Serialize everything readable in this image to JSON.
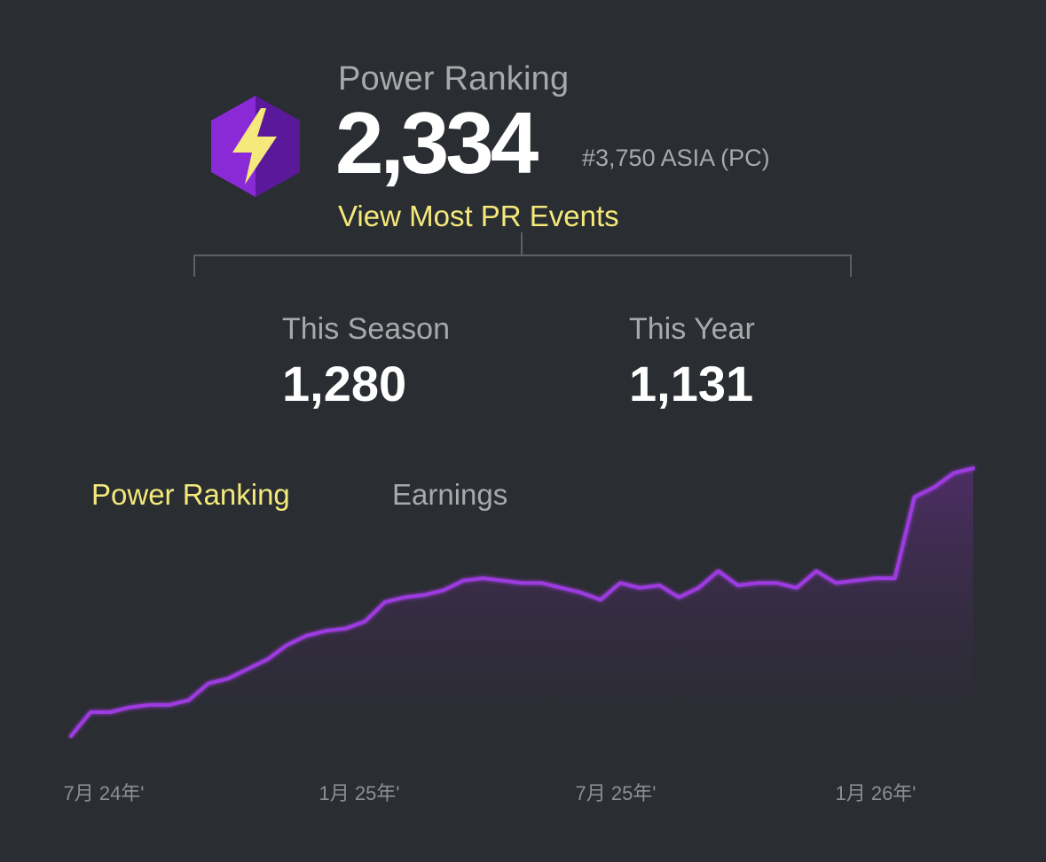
{
  "header": {
    "title": "Power Ranking",
    "score": "2,334",
    "rank": "#3,750 ASIA (PC)",
    "link": "View Most PR Events",
    "badge_icon": "lightning-hexagon-icon",
    "badge_colors": {
      "hex": "#7a22c9",
      "bolt": "#f4e97a"
    }
  },
  "stats": {
    "season_label": "This Season",
    "season_value": "1,280",
    "year_label": "This Year",
    "year_value": "1,131"
  },
  "tabs": [
    {
      "label": "Power Ranking",
      "active": true
    },
    {
      "label": "Earnings",
      "active": false
    }
  ],
  "colors": {
    "accent": "#f4e97a",
    "line": "#9d3be0",
    "background": "#2a2d31"
  },
  "chart_data": {
    "type": "area",
    "title": "",
    "xlabel": "",
    "ylabel": "",
    "x_ticks": [
      "7月 24年'",
      "1月 25年'",
      "7月 25年'",
      "1月 26年'"
    ],
    "grid": false,
    "series": [
      {
        "values": [
          0,
          5,
          5,
          6,
          6.5,
          6.5,
          7.5,
          11,
          12,
          14,
          16,
          19,
          21,
          22,
          22.5,
          24,
          28,
          29,
          29.5,
          30.5,
          32.5,
          33,
          32.5,
          32,
          32,
          31,
          30,
          28.5,
          32,
          31,
          31.5,
          29,
          31,
          34.5,
          31.5,
          32,
          32,
          31,
          34.5,
          32,
          32.5,
          33,
          33,
          50,
          52,
          55,
          56
        ]
      }
    ]
  }
}
